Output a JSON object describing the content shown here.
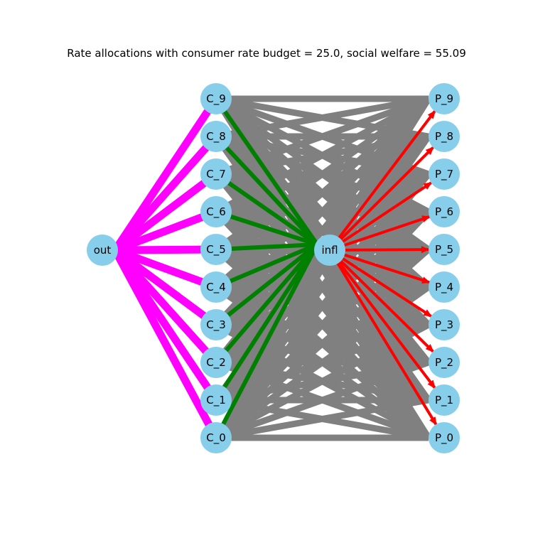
{
  "title": "Rate allocations with consumer rate budget = 25.0, social welfare = 55.09",
  "colors": {
    "node": "#87ceeb",
    "out_edges": "#ff00ff",
    "consumer_to_infl": "#008000",
    "consumer_to_producer": "#808080",
    "infl_to_producer": "#ff0000"
  },
  "nodes": {
    "out": "out",
    "infl": "infl",
    "consumers": [
      "C_9",
      "C_8",
      "C_7",
      "C_6",
      "C_5",
      "C_4",
      "C_3",
      "C_2",
      "C_1",
      "C_0"
    ],
    "producers": [
      "P_9",
      "P_8",
      "P_7",
      "P_6",
      "P_5",
      "P_4",
      "P_3",
      "P_2",
      "P_1",
      "P_0"
    ]
  }
}
